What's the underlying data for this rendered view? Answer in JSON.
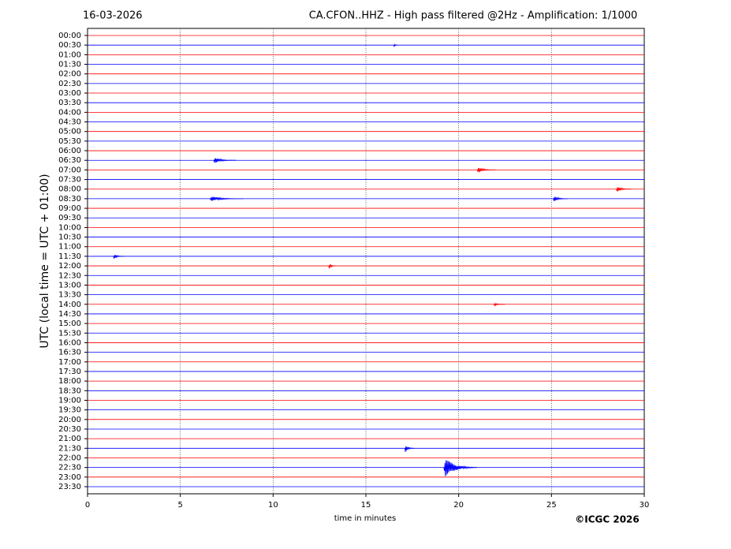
{
  "chart_data": {
    "type": "helicorder",
    "title_left": "16-03-2026",
    "title": "CA.CFON..HHZ - High pass filtered @2Hz - Amplification: 1/1000",
    "ylabel": "UTC (local time = UTC + 01:00)",
    "xlabel": "time in minutes",
    "credit": "©ICGC 2026",
    "categories": [
      "00:00",
      "00:30",
      "01:00",
      "01:30",
      "02:00",
      "02:30",
      "03:00",
      "03:30",
      "04:00",
      "04:30",
      "05:00",
      "05:30",
      "06:00",
      "06:30",
      "07:00",
      "07:30",
      "08:00",
      "08:30",
      "09:00",
      "09:30",
      "10:00",
      "10:30",
      "11:00",
      "11:30",
      "12:00",
      "12:30",
      "13:00",
      "13:30",
      "14:00",
      "14:30",
      "15:00",
      "15:30",
      "16:00",
      "16:30",
      "17:00",
      "17:30",
      "18:00",
      "18:30",
      "19:00",
      "19:30",
      "20:00",
      "20:30",
      "21:00",
      "21:30",
      "22:00",
      "22:30",
      "23:00",
      "23:30"
    ],
    "colors": [
      "#ff0000",
      "#0000ff"
    ],
    "xlim": [
      0,
      30
    ],
    "xticks": [
      0,
      5,
      10,
      15,
      20,
      25,
      30
    ],
    "grid": true,
    "events": [
      {
        "row": 1,
        "x": 16.5,
        "duration": 0.2,
        "amplitude": 0.2
      },
      {
        "row": 13,
        "x": 6.8,
        "duration": 1.2,
        "amplitude": 0.3
      },
      {
        "row": 14,
        "x": 21.0,
        "duration": 1.0,
        "amplitude": 0.3
      },
      {
        "row": 16,
        "x": 28.5,
        "duration": 0.8,
        "amplitude": 0.3
      },
      {
        "row": 17,
        "x": 6.6,
        "duration": 1.8,
        "amplitude": 0.25
      },
      {
        "row": 17,
        "x": 25.1,
        "duration": 0.8,
        "amplitude": 0.3
      },
      {
        "row": 23,
        "x": 1.4,
        "duration": 0.6,
        "amplitude": 0.25
      },
      {
        "row": 24,
        "x": 13.0,
        "duration": 0.4,
        "amplitude": 0.3
      },
      {
        "row": 28,
        "x": 21.9,
        "duration": 0.6,
        "amplitude": 0.15
      },
      {
        "row": 43,
        "x": 17.1,
        "duration": 0.5,
        "amplitude": 0.4
      },
      {
        "row": 45,
        "x": 19.2,
        "duration": 1.8,
        "amplitude": 1.0
      }
    ]
  }
}
